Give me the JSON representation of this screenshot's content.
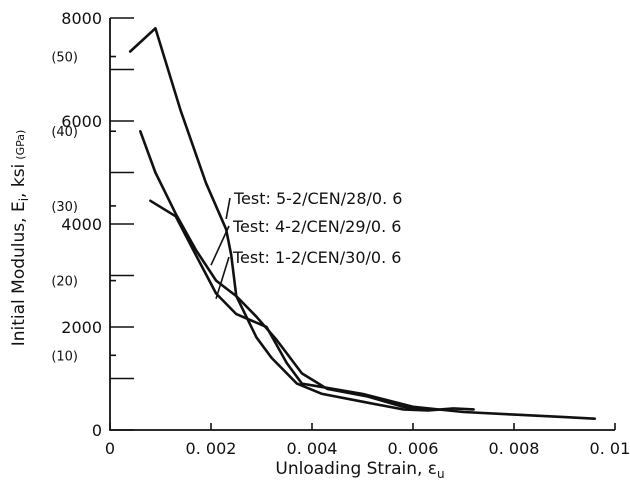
{
  "chart_data": {
    "type": "line",
    "xlabel": "Unloading Strain, ε",
    "xlabel_sub": "u",
    "ylabel": "Initial Modulus, E",
    "ylabel_sub": "i",
    "ylabel_unit": ", ksi",
    "ylabel_secondary_unit": "(GPa)",
    "xlim": [
      0,
      0.01
    ],
    "ylim": [
      0,
      8000
    ],
    "x_ticks": [
      0,
      0.002,
      0.004,
      0.006,
      0.008,
      0.01
    ],
    "x_tick_labels": [
      "0",
      "0. 002",
      "0. 004",
      "0. 006",
      "0. 008",
      "0. 010"
    ],
    "y_ticks": [
      0,
      2000,
      4000,
      6000,
      8000
    ],
    "y_tick_labels": [
      "0",
      "2000",
      "4000",
      "6000",
      "8000"
    ],
    "y_minor_ticks": [
      1000,
      3000,
      5000,
      7000
    ],
    "y_secondary_ticks": [
      10,
      20,
      30,
      40,
      50
    ],
    "y_secondary_labels": [
      "(10)",
      "(20)",
      "(30)",
      "(40)",
      "(50)"
    ],
    "grid": false,
    "series": [
      {
        "name": "Test: 5-2/CEN/28/0. 6",
        "x": [
          0.0004,
          0.0009,
          0.0014,
          0.0019,
          0.0023,
          0.0024,
          0.0025,
          0.0029,
          0.0032,
          0.0037,
          0.0042,
          0.005,
          0.0058,
          0.0063,
          0.0068,
          0.0072
        ],
        "y": [
          7350,
          7800,
          6200,
          4800,
          3900,
          3400,
          2600,
          1800,
          1400,
          900,
          700,
          550,
          400,
          380,
          420,
          400
        ]
      },
      {
        "name": "Test: 4-2/CEN/29/0. 6",
        "x": [
          0.0006,
          0.0009,
          0.0013,
          0.0017,
          0.0021,
          0.0025,
          0.0029,
          0.0033,
          0.0038,
          0.0043,
          0.0051,
          0.0058,
          0.0063
        ],
        "y": [
          5800,
          5000,
          4200,
          3500,
          2900,
          2600,
          2200,
          1750,
          1100,
          800,
          650,
          450,
          400
        ]
      },
      {
        "name": "Test: 1-2/CEN/30/0. 6",
        "x": [
          0.0008,
          0.0013,
          0.0017,
          0.0021,
          0.0025,
          0.0031,
          0.0035,
          0.0038,
          0.0041,
          0.005,
          0.006,
          0.007,
          0.008,
          0.009,
          0.0096
        ],
        "y": [
          4450,
          4150,
          3400,
          2650,
          2250,
          2000,
          1300,
          900,
          850,
          700,
          450,
          350,
          300,
          250,
          220
        ]
      }
    ],
    "annotations": [
      {
        "text": "Test: 5-2/CEN/28/0. 6",
        "series": 0,
        "anchor_x": 0.0023,
        "anchor_y": 4100
      },
      {
        "text": "Test: 4-2/CEN/29/0. 6",
        "series": 1,
        "anchor_x": 0.002,
        "anchor_y": 3200
      },
      {
        "text": "Test: 1-2/CEN/30/0. 6",
        "series": 2,
        "anchor_x": 0.0021,
        "anchor_y": 2550
      }
    ]
  }
}
